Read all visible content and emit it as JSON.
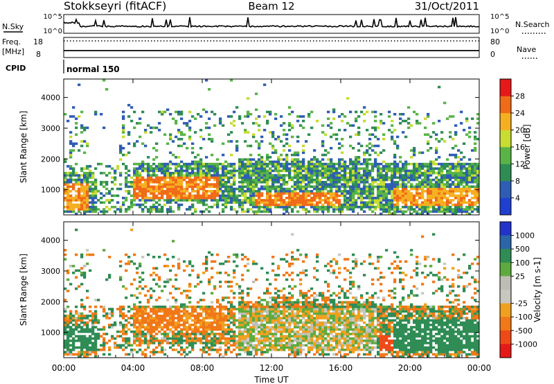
{
  "header": {
    "station": "Stokkseyri (fitACF)",
    "beam": "Beam 12",
    "date": "31/Oct/2011"
  },
  "aux_panels": {
    "nsky_label": "N.Sky",
    "nsearch_label": "N.Search",
    "noise_ticks": [
      "10^5",
      "10^0"
    ],
    "freq_label_1": "Freq.",
    "freq_label_2": "[MHz]",
    "freq_ticks": [
      "18",
      "8"
    ],
    "nave_label": "Nave",
    "nave_ticks": [
      "80",
      "0"
    ],
    "cpid_label": "CPID",
    "cpid_value": "normal 150"
  },
  "x_axis": {
    "label": "Time UT",
    "ticks": [
      "00:00",
      "04:00",
      "08:00",
      "12:00",
      "16:00",
      "20:00",
      "00:00"
    ]
  },
  "colors": {
    "power": [
      "#1f3fd0",
      "#2f5db4",
      "#2f8c55",
      "#59b347",
      "#c8dc32",
      "#f5b021",
      "#f06b18",
      "#e61919"
    ],
    "velocity": [
      "#2233cc",
      "#2c65a8",
      "#2f8c55",
      "#5faa3f",
      "#bdbdb6",
      "#c8c8c0",
      "#f0a020",
      "#f07818",
      "#ee4a18",
      "#e61919"
    ]
  },
  "chart_data": [
    {
      "type": "heatmap",
      "title": "",
      "xlabel": "",
      "ylabel": "Slant Range [km]",
      "xlim_hours": [
        0,
        24
      ],
      "ylim": [
        180,
        4600
      ],
      "y_ticks": [
        1000,
        2000,
        3000,
        4000
      ],
      "colorbar": {
        "label": "Power [dB]",
        "range": [
          0,
          32
        ],
        "tick_labels": [
          "4",
          "8",
          "12",
          "16",
          "20",
          "24",
          "28"
        ]
      },
      "dominant_regions": [
        {
          "time_hours": [
            0,
            1.5
          ],
          "range_km": [
            300,
            1200
          ],
          "value": 26
        },
        {
          "time_hours": [
            4,
            9
          ],
          "range_km": [
            700,
            1400
          ],
          "value": 28
        },
        {
          "time_hours": [
            11,
            16
          ],
          "range_km": [
            500,
            900
          ],
          "value": 28
        },
        {
          "time_hours": [
            19,
            24
          ],
          "range_km": [
            500,
            1100
          ],
          "value": 26
        }
      ]
    },
    {
      "type": "heatmap",
      "title": "",
      "xlabel": "Time UT",
      "ylabel": "Slant Range [km]",
      "xlim_hours": [
        0,
        24
      ],
      "ylim": [
        180,
        4600
      ],
      "y_ticks": [
        1000,
        2000,
        3000,
        4000
      ],
      "colorbar": {
        "label": "Velocity [m s-1]",
        "tick_labels": [
          "1000",
          "500",
          "100",
          "25",
          "-25",
          "-100",
          "-500",
          "-1000"
        ]
      },
      "dominant_regions": [
        {
          "time_hours": [
            0,
            2
          ],
          "range_km": [
            400,
            1200
          ],
          "value": 300
        },
        {
          "time_hours": [
            4,
            9.5
          ],
          "range_km": [
            1100,
            1800
          ],
          "value": -150
        },
        {
          "time_hours": [
            10,
            18
          ],
          "range_km": [
            400,
            1800
          ],
          "value": 0
        },
        {
          "time_hours": [
            18.2,
            19
          ],
          "range_km": [
            400,
            900
          ],
          "value": -900
        },
        {
          "time_hours": [
            19,
            24
          ],
          "range_km": [
            400,
            1400
          ],
          "value": 300
        }
      ]
    }
  ]
}
